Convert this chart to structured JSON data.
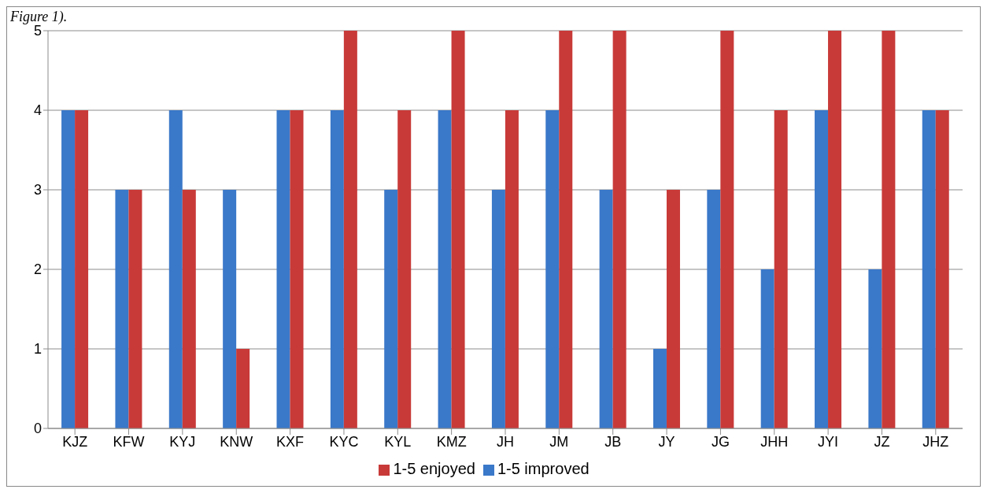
{
  "chart_data": {
    "type": "bar",
    "annotations": [
      "Figure 1)."
    ],
    "categories": [
      "KJZ",
      "KFW",
      "KYJ",
      "KNW",
      "KXF",
      "KYC",
      "KYL",
      "KMZ",
      "JH",
      "JM",
      "JB",
      "JY",
      "JG",
      "JHH",
      "JYI",
      "JZ",
      "JHZ"
    ],
    "series": [
      {
        "name": "1-5 improved",
        "color": "#3a78c9",
        "values": [
          4,
          3,
          4,
          3,
          4,
          4,
          3,
          4,
          3,
          4,
          3,
          1,
          3,
          2,
          4,
          2,
          4
        ]
      },
      {
        "name": "1-5 enjoyed",
        "color": "#c83a38",
        "values": [
          4,
          3,
          3,
          1,
          4,
          5,
          4,
          5,
          4,
          5,
          5,
          3,
          5,
          4,
          5,
          5,
          4
        ]
      }
    ],
    "ylim": [
      0,
      5
    ],
    "yticks": [
      0,
      1,
      2,
      3,
      4,
      5
    ],
    "grid": "y",
    "legend": "bottom"
  }
}
